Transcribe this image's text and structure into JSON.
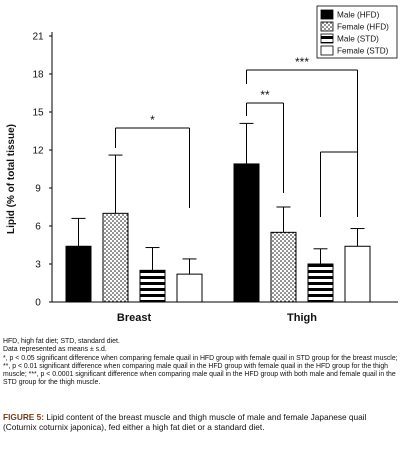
{
  "chart_data": {
    "type": "bar",
    "categories": [
      "Breast",
      "Thigh"
    ],
    "ylabel": "Lipid (% of total tissue)",
    "ylim": [
      0,
      21
    ],
    "yticks": [
      0,
      3,
      6,
      9,
      12,
      15,
      18,
      21
    ],
    "series": [
      {
        "name": "Male (HFD)",
        "pattern": "solid-black",
        "values": [
          4.4,
          10.9
        ],
        "errors": [
          2.2,
          3.2
        ]
      },
      {
        "name": "Female (HFD)",
        "pattern": "dots",
        "values": [
          7.0,
          5.5
        ],
        "errors": [
          4.6,
          2.0
        ]
      },
      {
        "name": "Male (STD)",
        "pattern": "horizontal-stripes",
        "values": [
          2.5,
          3.0
        ],
        "errors": [
          1.8,
          1.2
        ]
      },
      {
        "name": "Female (STD)",
        "pattern": "white",
        "values": [
          2.2,
          4.4
        ],
        "errors": [
          1.2,
          1.4
        ]
      }
    ],
    "annotations": [
      {
        "text": "*",
        "comparison": "Female (HFD) vs Female (STD)",
        "category": "Breast"
      },
      {
        "text": "**",
        "comparison": "Male (HFD) vs Female (HFD)",
        "category": "Thigh"
      },
      {
        "text": "***",
        "comparison": "Male (HFD) vs Male (STD) and Female (STD)",
        "category": "Thigh"
      }
    ],
    "legend_position": "top-right",
    "grid": false
  },
  "colors": {
    "bar_stroke": "#000000",
    "caption_label": "#7a3d12"
  },
  "notes": {
    "line1": "HFD, high fat diet; STD, standard diet.",
    "line2": "Data represented as means ± s.d.",
    "line3": "*, p < 0.05 significant difference when comparing female quail in HFD group with female quail in STD group for the breast muscle; **, p < 0.01 significant difference when comparing male quail in the HFD group with female quail in the HFD group for the thigh muscle; ***, p < 0.0001 significant difference when comparing male quail in the HFD group with both male and female quail in the STD group for the thigh muscle."
  },
  "caption": {
    "label": "FIGURE 5:",
    "text": "Lipid content of the breast muscle and thigh muscle of male and female Japanese quail (Coturnix coturnix japonica), fed either a high fat diet or a standard diet."
  }
}
